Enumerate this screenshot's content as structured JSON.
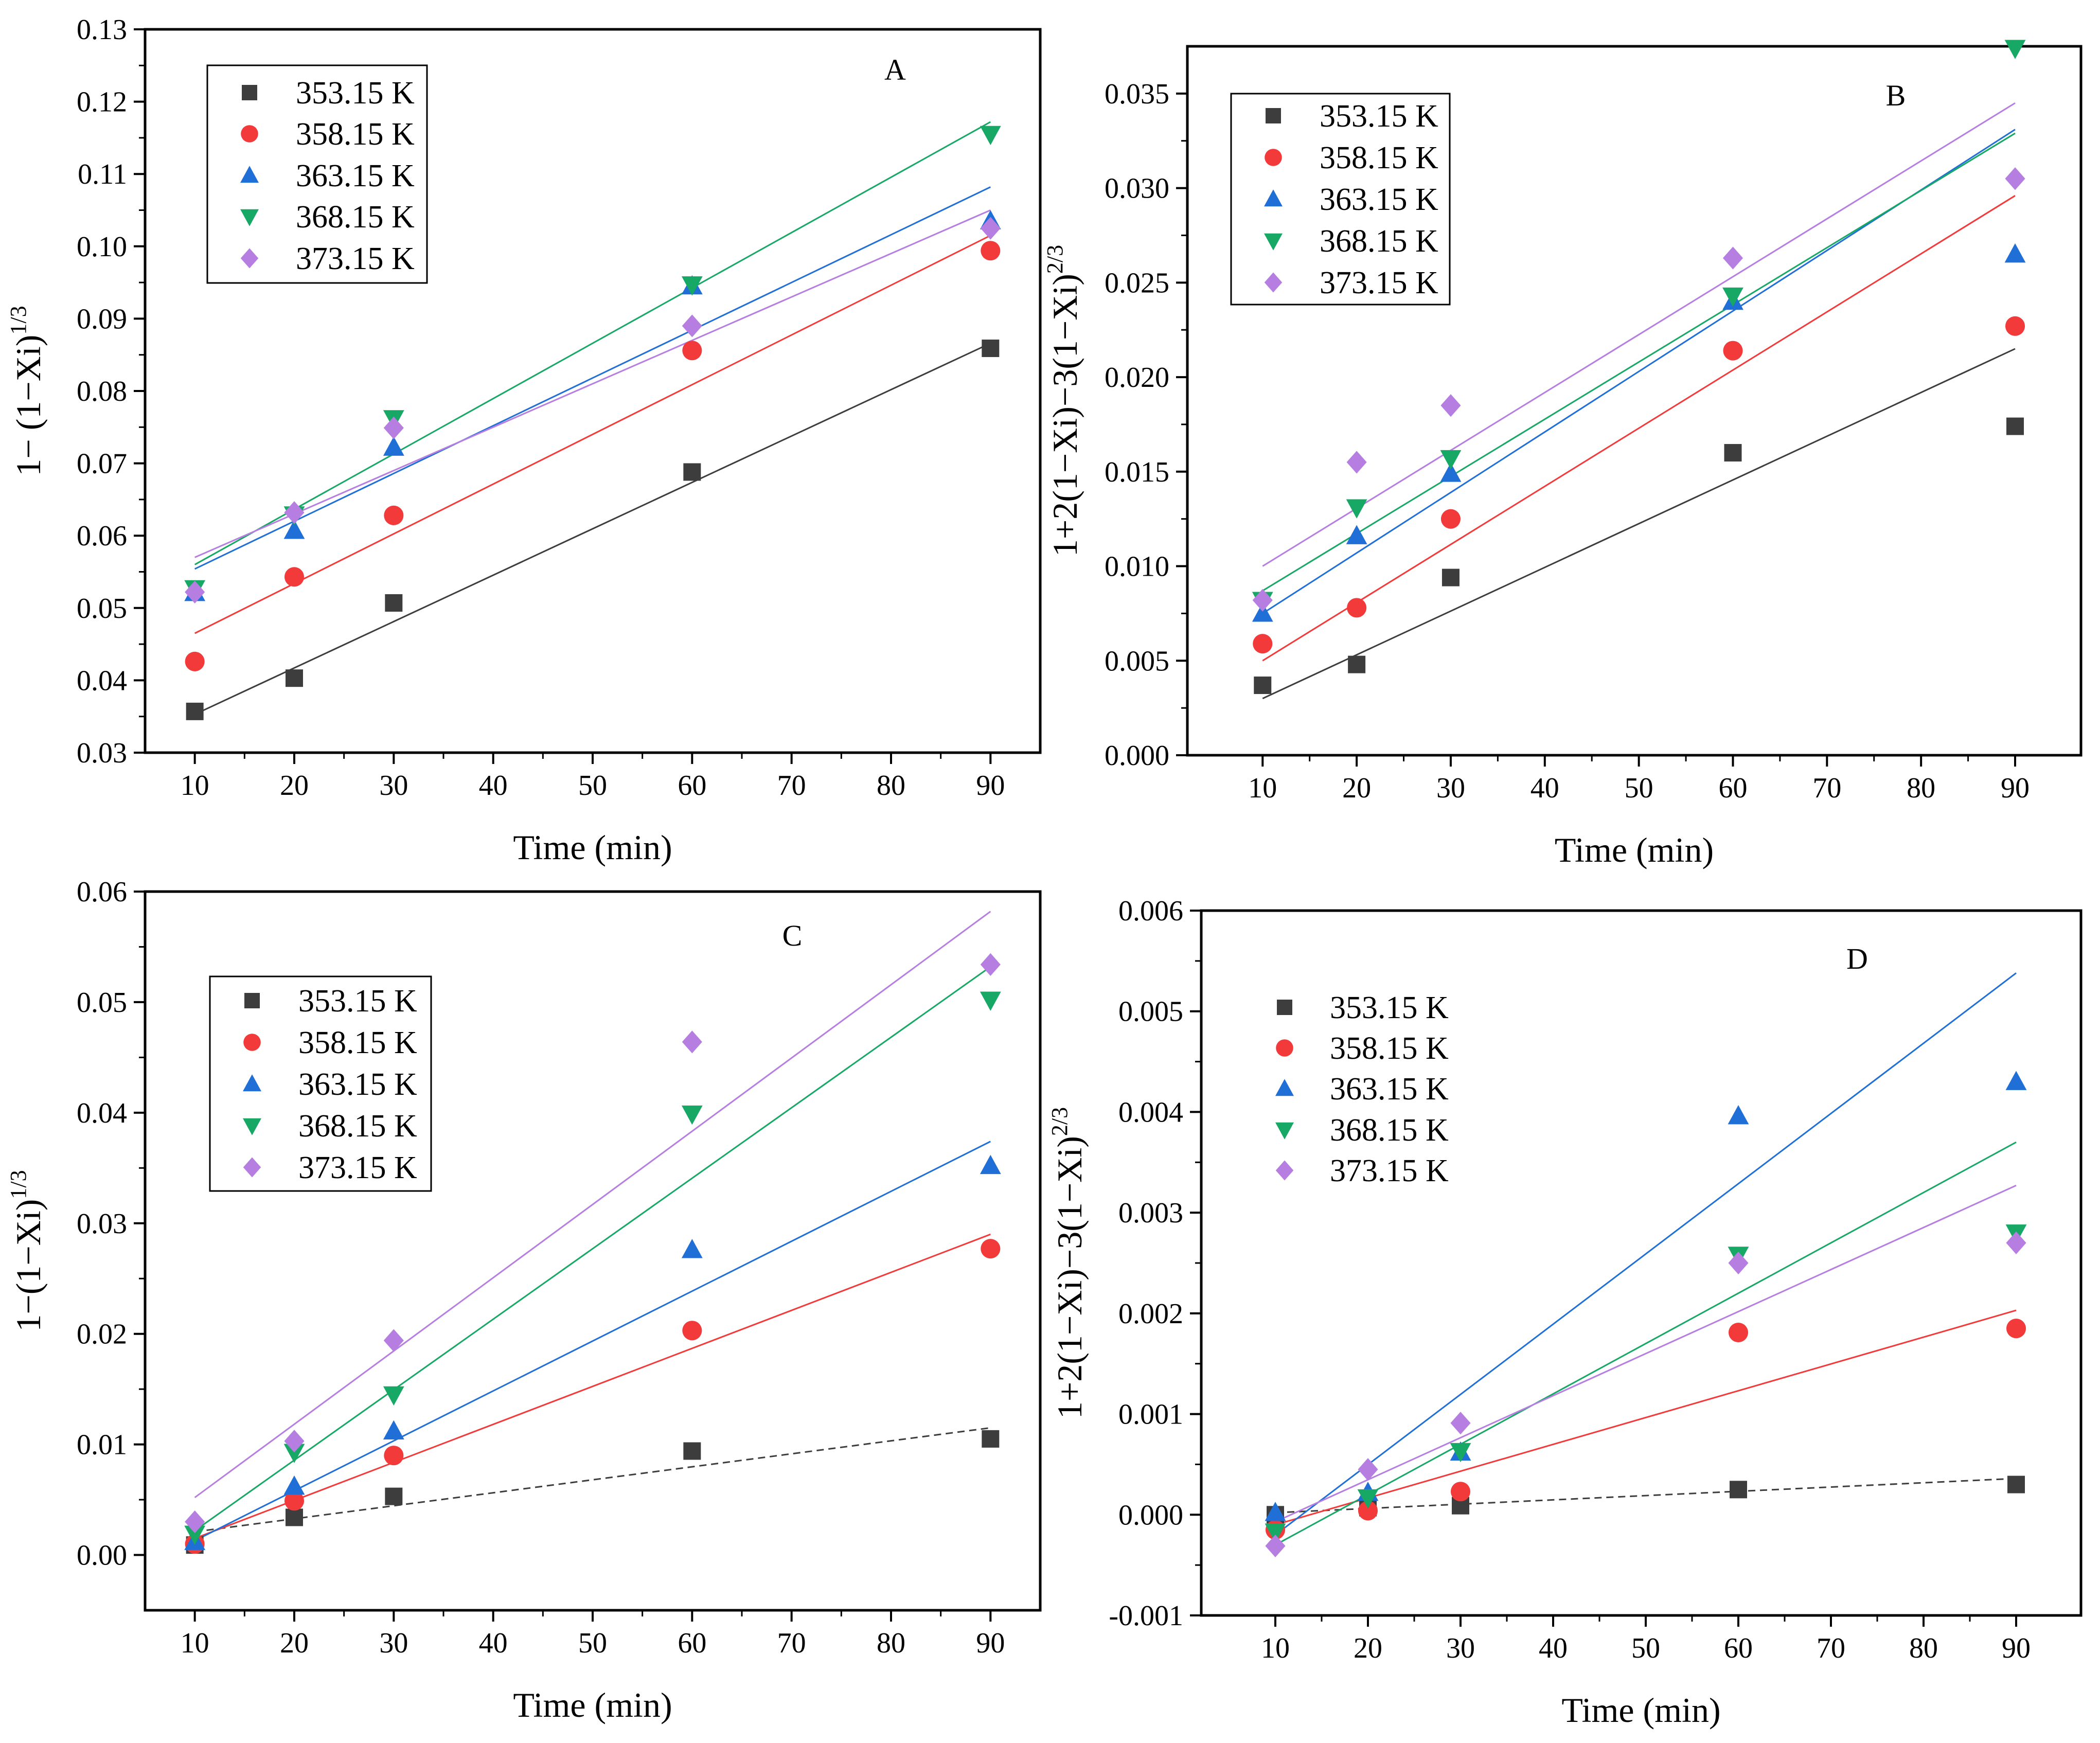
{
  "figure": {
    "marker_colors": {
      "353.15 K": "#3d3d3d",
      "358.15 K": "#f23a3a",
      "363.15 K": "#1f6fd6",
      "368.15 K": "#17a866",
      "373.15 K": "#b57ee0"
    },
    "marker_shapes": {
      "353.15 K": "square",
      "358.15 K": "circle",
      "363.15 K": "triangle-up",
      "368.15 K": "triangle-down",
      "373.15 K": "diamond"
    }
  },
  "chart_data": [
    {
      "type": "scatter",
      "panel": "A",
      "title": "",
      "xlabel": "Time  (min)",
      "ylabel": "1− (1−Xi)",
      "ylabel_sup": "1/3",
      "xlim": [
        5,
        95
      ],
      "ylim": [
        0.03,
        0.13
      ],
      "xticks": [
        10,
        20,
        30,
        40,
        50,
        60,
        70,
        80,
        90
      ],
      "xtick_labels": [
        "10",
        "20",
        "30",
        "40",
        "50",
        "60",
        "70",
        "80",
        "90"
      ],
      "yticks": [
        0.03,
        0.04,
        0.05,
        0.06,
        0.07,
        0.08,
        0.09,
        0.1,
        0.11,
        0.12,
        0.13
      ],
      "ytick_labels": [
        "0.03",
        "0.04",
        "0.05",
        "0.06",
        "0.07",
        "0.08",
        "0.09",
        "0.10",
        "0.11",
        "0.12",
        "0.13"
      ],
      "legend": [
        "353.15 K",
        "358.15 K",
        "363.15 K",
        "368.15 K",
        "373.15 K"
      ],
      "legend_boxed": true,
      "legend_position": "top-left",
      "x": [
        10,
        20,
        30,
        60,
        90
      ],
      "series": [
        {
          "name": "353.15 K",
          "values": [
            0.0357,
            0.0403,
            0.0507,
            0.0688,
            0.0859
          ],
          "fit": [
            0.0353,
            0.0866
          ],
          "fit_style": "solid"
        },
        {
          "name": "358.15 K",
          "values": [
            0.0426,
            0.0543,
            0.0628,
            0.0856,
            0.0994
          ],
          "fit": [
            0.0465,
            0.1015
          ],
          "fit_style": "solid"
        },
        {
          "name": "363.15 K",
          "values": [
            0.0521,
            0.0607,
            0.0722,
            0.0945,
            0.1035
          ],
          "fit": [
            0.0554,
            0.1082
          ],
          "fit_style": "solid"
        },
        {
          "name": "368.15 K",
          "values": [
            0.0527,
            0.0629,
            0.0762,
            0.0947,
            0.1155
          ],
          "fit": [
            0.056,
            0.1172
          ],
          "fit_style": "solid"
        },
        {
          "name": "373.15 K",
          "values": [
            0.0522,
            0.0632,
            0.0749,
            0.089,
            0.1025
          ],
          "fit": [
            0.057,
            0.105
          ],
          "fit_style": "solid"
        }
      ]
    },
    {
      "type": "scatter",
      "panel": "B",
      "title": "",
      "xlabel": "Time  (min)",
      "ylabel": "1+2(1−Xi)−3(1−Xi)",
      "ylabel_sup": "2/3",
      "xlim": [
        2,
        97
      ],
      "ylim": [
        0.0,
        0.0375
      ],
      "xticks": [
        10,
        20,
        30,
        40,
        50,
        60,
        70,
        80,
        90
      ],
      "xtick_labels": [
        "10",
        "20",
        "30",
        "40",
        "50",
        "60",
        "70",
        "80",
        "90"
      ],
      "yticks": [
        0.0,
        0.005,
        0.01,
        0.015,
        0.02,
        0.025,
        0.03,
        0.035
      ],
      "ytick_labels": [
        "0.000",
        "0.005",
        "0.010",
        "0.015",
        "0.020",
        "0.025",
        "0.030",
        "0.035"
      ],
      "legend": [
        "353.15 K",
        "358.15 K",
        "363.15 K",
        "368.15 K",
        "373.15 K"
      ],
      "legend_boxed": true,
      "legend_position": "top-left",
      "x": [
        10,
        20,
        30,
        60,
        90
      ],
      "series": [
        {
          "name": "353.15 K",
          "values": [
            0.0037,
            0.0048,
            0.0094,
            0.016,
            0.0174
          ],
          "fit": [
            0.003,
            0.0215
          ],
          "fit_style": "solid"
        },
        {
          "name": "358.15 K",
          "values": [
            0.0059,
            0.0078,
            0.0125,
            0.0214,
            0.0227
          ],
          "fit": [
            0.005,
            0.0296
          ],
          "fit_style": "solid"
        },
        {
          "name": "363.15 K",
          "values": [
            0.0075,
            0.0116,
            0.0149,
            0.024,
            0.0265
          ],
          "fit": [
            0.0075,
            0.0331
          ],
          "fit_style": "solid"
        },
        {
          "name": "368.15 K",
          "values": [
            0.0082,
            0.0131,
            0.0157,
            0.0243,
            0.0374
          ],
          "fit": [
            0.0087,
            0.0329
          ],
          "fit_style": "solid"
        },
        {
          "name": "373.15 K",
          "values": [
            0.0082,
            0.0155,
            0.0185,
            0.0263,
            0.0305
          ],
          "fit": [
            0.01,
            0.0345
          ],
          "fit_style": "solid"
        }
      ]
    },
    {
      "type": "scatter",
      "panel": "C",
      "title": "",
      "xlabel": "Time  (min)",
      "ylabel": "1−(1−Xi)",
      "ylabel_sup": "1/3",
      "xlim": [
        5,
        95
      ],
      "ylim": [
        -0.005,
        0.06
      ],
      "xticks": [
        10,
        20,
        30,
        40,
        50,
        60,
        70,
        80,
        90
      ],
      "xtick_labels": [
        "10",
        "20",
        "30",
        "40",
        "50",
        "60",
        "70",
        "80",
        "90"
      ],
      "yticks": [
        0.0,
        0.01,
        0.02,
        0.03,
        0.04,
        0.05,
        0.06
      ],
      "ytick_labels": [
        "0.00",
        "0.01",
        "0.02",
        "0.03",
        "0.04",
        "0.05",
        "0.06"
      ],
      "legend": [
        "353.15 K",
        "358.15 K",
        "363.15 K",
        "368.15 K",
        "373.15 K"
      ],
      "legend_boxed": true,
      "legend_position": "top-left",
      "x": [
        10,
        20,
        30,
        60,
        90
      ],
      "series": [
        {
          "name": "353.15 K",
          "values": [
            0.0009,
            0.0034,
            0.0053,
            0.0094,
            0.0105
          ],
          "fit": [
            0.0021,
            0.0115
          ],
          "fit_style": "dashed"
        },
        {
          "name": "358.15 K",
          "values": [
            0.001,
            0.0049,
            0.009,
            0.0203,
            0.0277
          ],
          "fit": [
            0.0015,
            0.029
          ],
          "fit_style": "solid"
        },
        {
          "name": "363.15 K",
          "values": [
            0.0012,
            0.0062,
            0.0112,
            0.0276,
            0.0352
          ],
          "fit": [
            0.0013,
            0.0374
          ],
          "fit_style": "solid"
        },
        {
          "name": "368.15 K",
          "values": [
            0.0019,
            0.0093,
            0.0145,
            0.0399,
            0.0502
          ],
          "fit": [
            0.0022,
            0.0532
          ],
          "fit_style": "solid"
        },
        {
          "name": "373.15 K",
          "values": [
            0.003,
            0.0103,
            0.0194,
            0.0464,
            0.0534
          ],
          "fit": [
            0.0052,
            0.0582
          ],
          "fit_style": "solid"
        }
      ]
    },
    {
      "type": "scatter",
      "panel": "D",
      "title": "",
      "xlabel": "Time  (min)",
      "ylabel": "1+2(1−Xi)−3(1−Xi)",
      "ylabel_sup": "2/3",
      "xlim": [
        2,
        97
      ],
      "ylim": [
        -0.001,
        0.006
      ],
      "xticks": [
        10,
        20,
        30,
        40,
        50,
        60,
        70,
        80,
        90
      ],
      "xtick_labels": [
        "10",
        "20",
        "30",
        "40",
        "50",
        "60",
        "70",
        "80",
        "90"
      ],
      "yticks": [
        -0.001,
        0.0,
        0.001,
        0.002,
        0.003,
        0.004,
        0.005,
        0.006
      ],
      "ytick_labels": [
        "-0.001",
        "0.000",
        "0.001",
        "0.002",
        "0.003",
        "0.004",
        "0.005",
        "0.006"
      ],
      "legend": [
        "353.15 K",
        "358.15 K",
        "363.15 K",
        "368.15 K",
        "373.15 K"
      ],
      "legend_boxed": false,
      "legend_position": "top-left",
      "x": [
        10,
        20,
        30,
        60,
        90
      ],
      "series": [
        {
          "name": "353.15 K",
          "values": [
            0.0,
            7e-05,
            9e-05,
            0.00025,
            0.0003
          ],
          "fit": [
            2e-05,
            0.00036
          ],
          "fit_style": "dashed"
        },
        {
          "name": "358.15 K",
          "values": [
            -0.00015,
            4e-05,
            0.00023,
            0.00181,
            0.00185
          ],
          "fit": [
            -0.0001,
            0.00203
          ],
          "fit_style": "solid"
        },
        {
          "name": "363.15 K",
          "values": [
            2e-05,
            0.00022,
            0.00062,
            0.00396,
            0.0043
          ],
          "fit": [
            -0.0002,
            0.00538
          ],
          "fit_style": "solid"
        },
        {
          "name": "368.15 K",
          "values": [
            -0.00017,
            0.00017,
            0.00063,
            0.00258,
            0.0028
          ],
          "fit": [
            -0.0003,
            0.0037
          ],
          "fit_style": "solid"
        },
        {
          "name": "373.15 K",
          "values": [
            -0.00031,
            0.00045,
            0.00091,
            0.0025,
            0.0027
          ],
          "fit": [
            -7e-05,
            0.00327
          ],
          "fit_style": "solid"
        }
      ]
    }
  ]
}
